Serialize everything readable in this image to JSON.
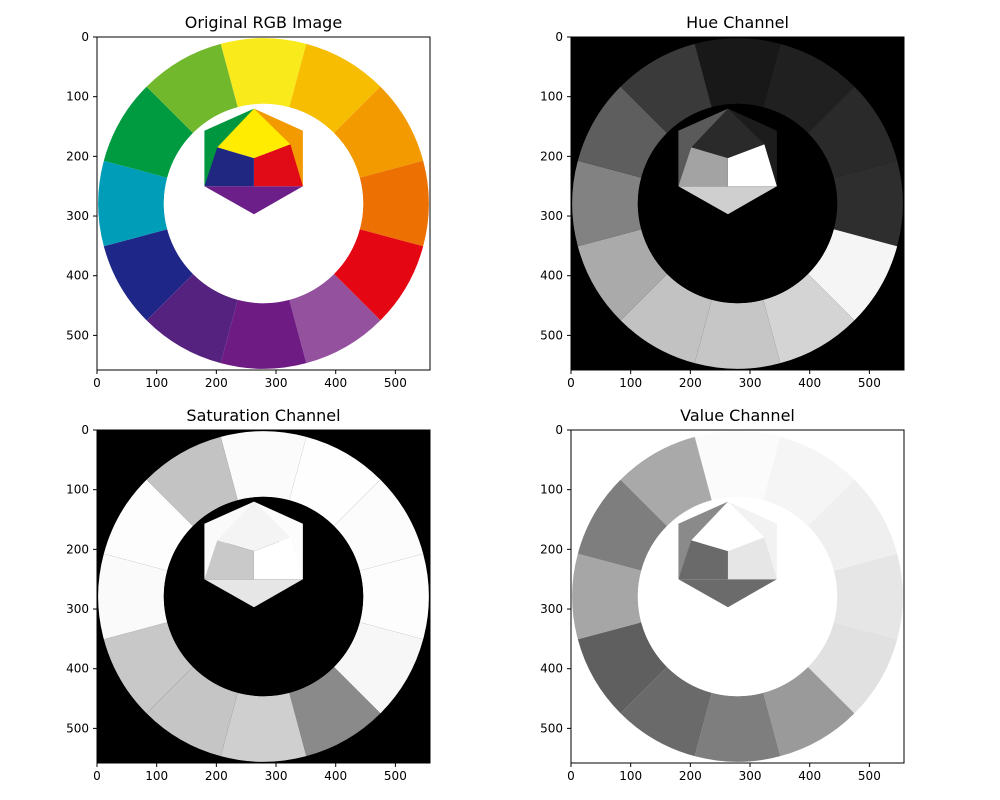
{
  "figure": {
    "panel_titles": [
      "Original RGB Image",
      "Hue Channel",
      "Saturation Channel",
      "Value Channel"
    ]
  },
  "chart_data": [
    {
      "type": "image",
      "title": "Original RGB Image",
      "channel": "rgb",
      "x_ticks": [
        0,
        100,
        200,
        300,
        400,
        500
      ],
      "y_ticks": [
        0,
        100,
        200,
        300,
        400,
        500
      ],
      "xlim": [
        0,
        558
      ],
      "ylim": [
        558,
        0
      ],
      "content": "Goethe/Itten 12-part color wheel with inner triangle and hexagon",
      "ring_colors": [
        "#f9ea1b",
        "#f7bd00",
        "#f29a00",
        "#ed7002",
        "#e40613",
        "#94519e",
        "#6e1c84",
        "#55237f",
        "#1e2687",
        "#009db9",
        "#009a40",
        "#71b82d"
      ],
      "triangle_colors": [
        "#ffec00",
        "#e10a17",
        "#1f2781"
      ],
      "hexagon_colors": [
        "#f29a00",
        "#6c1f89",
        "#00963f"
      ]
    },
    {
      "type": "image",
      "title": "Hue Channel",
      "channel": "hue",
      "x_ticks": [
        0,
        100,
        200,
        300,
        400,
        500
      ],
      "y_ticks": [
        0,
        100,
        200,
        300,
        400,
        500
      ],
      "xlim": [
        0,
        558
      ],
      "ylim": [
        558,
        0
      ],
      "colormap": "gray"
    },
    {
      "type": "image",
      "title": "Saturation Channel",
      "channel": "saturation",
      "x_ticks": [
        0,
        100,
        200,
        300,
        400,
        500
      ],
      "y_ticks": [
        0,
        100,
        200,
        300,
        400,
        500
      ],
      "xlim": [
        0,
        558
      ],
      "ylim": [
        558,
        0
      ],
      "colormap": "gray"
    },
    {
      "type": "image",
      "title": "Value Channel",
      "channel": "value",
      "x_ticks": [
        0,
        100,
        200,
        300,
        400,
        500
      ],
      "y_ticks": [
        0,
        100,
        200,
        300,
        400,
        500
      ],
      "xlim": [
        0,
        558
      ],
      "ylim": [
        558,
        0
      ],
      "colormap": "gray"
    }
  ]
}
